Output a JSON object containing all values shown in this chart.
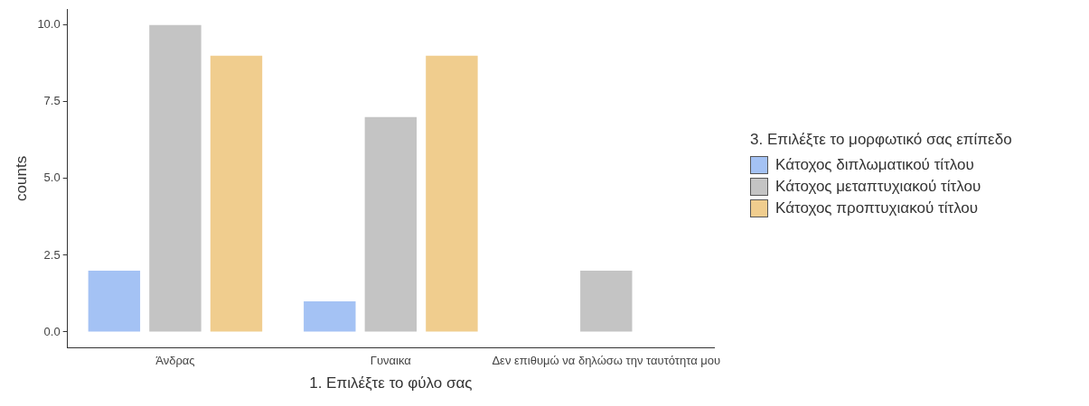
{
  "chart_data": {
    "type": "bar",
    "xlabel": "1. Επιλέξτε το φύλο σας",
    "ylabel": "counts",
    "legend_title": "3. Επιλέξτε το μορφωτικό σας επίπεδο",
    "categories": [
      "Άνδρας",
      "Γυναικα",
      "Δεν επιθυμώ να δηλώσω την ταυτότητα μου"
    ],
    "series": [
      {
        "name": "Κάτοχος διπλωματικού τίτλου",
        "color": "#a4c2f4",
        "values": [
          2,
          1,
          0
        ]
      },
      {
        "name": "Κάτοχος μεταπτυχιακού τίτλου",
        "color": "#c4c4c4",
        "values": [
          10,
          7,
          2
        ]
      },
      {
        "name": "Κάτοχος προπτυχιακού τίτλου",
        "color": "#f0cd8e",
        "values": [
          9,
          9,
          0
        ]
      }
    ],
    "ylim": [
      -0.5,
      10.5
    ],
    "yticks": [
      {
        "value": 0,
        "label": "0.0"
      },
      {
        "value": 2.5,
        "label": "2.5"
      },
      {
        "value": 5,
        "label": "5.0"
      },
      {
        "value": 7.5,
        "label": "7.5"
      },
      {
        "value": 10,
        "label": "10.0"
      }
    ],
    "grid": false,
    "legend": "right"
  }
}
